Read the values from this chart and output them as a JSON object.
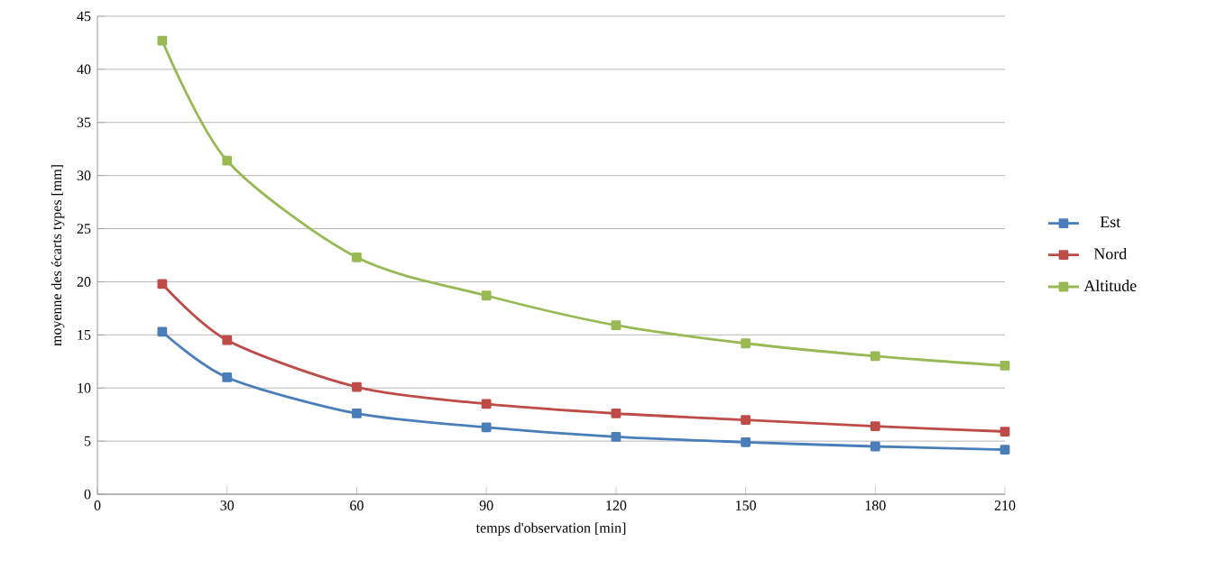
{
  "chart_data": {
    "type": "line",
    "xlabel": "temps d'observation [min]",
    "ylabel": "moyenne des écarts types [mm]",
    "x": [
      15,
      30,
      60,
      90,
      120,
      150,
      180,
      210
    ],
    "series": [
      {
        "name": "Est",
        "color": "#4a7ebb",
        "values": [
          15.3,
          11.0,
          7.6,
          6.3,
          5.4,
          4.9,
          4.5,
          4.2
        ]
      },
      {
        "name": "Nord",
        "color": "#be4b48",
        "values": [
          19.8,
          14.5,
          10.1,
          8.5,
          7.6,
          7.0,
          6.4,
          5.9
        ]
      },
      {
        "name": "Altitude",
        "color": "#98b954",
        "values": [
          42.7,
          31.4,
          22.3,
          18.7,
          15.9,
          14.2,
          13.0,
          12.1
        ]
      }
    ],
    "xlim": [
      0,
      210
    ],
    "xticks": [
      0,
      30,
      60,
      90,
      120,
      150,
      180,
      210
    ],
    "ylim": [
      0,
      45
    ],
    "yticks": [
      0,
      5,
      10,
      15,
      20,
      25,
      30,
      35,
      40,
      45
    ],
    "grid": "y",
    "legend": "right",
    "marker": "square",
    "line_style": "solid"
  }
}
